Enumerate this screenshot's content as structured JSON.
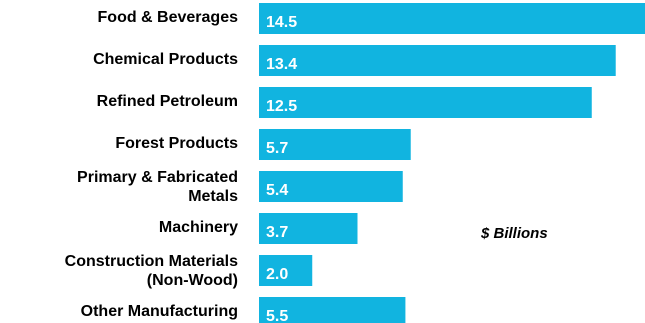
{
  "chart_data": {
    "type": "bar",
    "orientation": "horizontal",
    "categories": [
      [
        "Food & Beverages"
      ],
      [
        "Chemical Products"
      ],
      [
        "Refined Petroleum"
      ],
      [
        "Forest Products"
      ],
      [
        "Primary & Fabricated",
        "Metals"
      ],
      [
        "Machinery"
      ],
      [
        "Construction Materials",
        "(Non-Wood)"
      ],
      [
        "Other Manufacturing"
      ]
    ],
    "values": [
      14.5,
      13.4,
      12.5,
      5.7,
      5.4,
      3.7,
      2.0,
      5.5
    ],
    "value_labels": [
      "14.5",
      "13.4",
      "12.5",
      "5.7",
      "5.4",
      "3.7",
      "2.0",
      "5.5"
    ],
    "unit_label": "$ Billions",
    "xlim": [
      0,
      14.5
    ],
    "grid": false,
    "legend": "none",
    "bar_color": "#11b4e0",
    "value_label_color": "#ffffff",
    "category_label_color": "#000000"
  }
}
